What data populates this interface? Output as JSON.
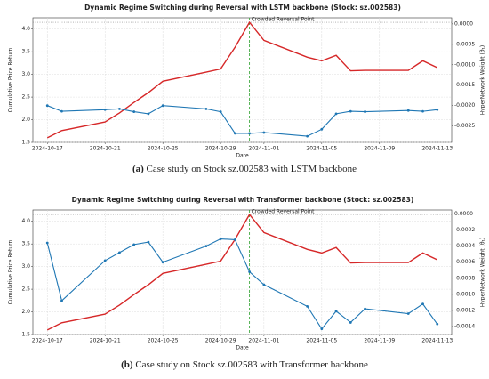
{
  "chart_data": [
    {
      "type": "line",
      "title": "Dynamic Regime Switching during Reversal with LSTM backbone (Stock: sz.002583)",
      "xlabel": "Date",
      "ylabel": "Cumulative Price Return",
      "y2label": "HyperNetwork Weight (θ₁)",
      "x": [
        "2024-10-17",
        "2024-10-18",
        "2024-10-21",
        "2024-10-22",
        "2024-10-23",
        "2024-10-24",
        "2024-10-25",
        "2024-10-28",
        "2024-10-29",
        "2024-10-30",
        "2024-10-31",
        "2024-11-01",
        "2024-11-04",
        "2024-11-05",
        "2024-11-06",
        "2024-11-07",
        "2024-11-08",
        "2024-11-11",
        "2024-11-12",
        "2024-11-13"
      ],
      "series": [
        {
          "name": "Cumulative Price Return",
          "color": "#d62728",
          "axis": "y",
          "markers": false,
          "values": [
            1.6,
            1.76,
            1.95,
            2.15,
            2.38,
            2.6,
            2.85,
            3.05,
            3.12,
            3.6,
            4.15,
            3.75,
            3.38,
            3.3,
            3.42,
            3.08,
            3.09,
            3.09,
            3.3,
            3.15
          ]
        },
        {
          "name": "HyperNetwork Weight",
          "color": "#1f77b4",
          "axis": "y2",
          "markers": true,
          "values": [
            -0.002,
            -0.00214,
            -0.0021,
            -0.00208,
            -0.00215,
            -0.0022,
            -0.002,
            -0.00208,
            -0.00215,
            -0.00268,
            -0.00268,
            -0.00266,
            -0.00275,
            -0.00258,
            -0.0022,
            -0.00214,
            -0.00215,
            -0.00212,
            -0.00214,
            -0.0021
          ]
        }
      ],
      "xlim": [
        "2024-10-16",
        "2024-11-14"
      ],
      "xticks": [
        "2024-10-17",
        "2024-10-21",
        "2024-10-25",
        "2024-10-29",
        "2024-11-01",
        "2024-11-05",
        "2024-11-09",
        "2024-11-13"
      ],
      "ylim": [
        1.5,
        4.25
      ],
      "yticks": [
        {
          "value": 1.5,
          "label": "1.5"
        },
        {
          "value": 2,
          "label": "2.0"
        },
        {
          "value": 2.5,
          "label": "2.5"
        },
        {
          "value": 3,
          "label": "3.0"
        },
        {
          "value": 3.5,
          "label": "3.5"
        },
        {
          "value": 4,
          "label": "4.0"
        }
      ],
      "y2lim": [
        -0.0029,
        0.00015
      ],
      "y2ticks": [
        {
          "value": -0.0025,
          "label": "-0.0025"
        },
        {
          "value": -0.002,
          "label": "-0.0020"
        },
        {
          "value": -0.0015,
          "label": "-0.0015"
        },
        {
          "value": -0.001,
          "label": "-0.0010"
        },
        {
          "value": -0.0005,
          "label": "-0.0005"
        },
        {
          "value": 0,
          "label": "0.0000"
        }
      ],
      "reference_line": 4.15,
      "annotation": {
        "x": "2024-10-31",
        "text": "Crowded Reversal Point"
      },
      "grid": true,
      "caption": {
        "tag": "(a)",
        "text": "Case study on Stock sz.002583 with LSTM backbone"
      }
    },
    {
      "type": "line",
      "title": "Dynamic Regime Switching during Reversal with Transformer backbone (Stock: sz.002583)",
      "xlabel": "Date",
      "ylabel": "Cumulative Price Return",
      "y2label": "HyperNetwork Weight (θ₁)",
      "x": [
        "2024-10-17",
        "2024-10-18",
        "2024-10-21",
        "2024-10-22",
        "2024-10-23",
        "2024-10-24",
        "2024-10-25",
        "2024-10-28",
        "2024-10-29",
        "2024-10-30",
        "2024-10-31",
        "2024-11-01",
        "2024-11-04",
        "2024-11-05",
        "2024-11-06",
        "2024-11-07",
        "2024-11-08",
        "2024-11-11",
        "2024-11-12",
        "2024-11-13"
      ],
      "series": [
        {
          "name": "Cumulative Price Return",
          "color": "#d62728",
          "axis": "y",
          "markers": false,
          "values": [
            1.6,
            1.76,
            1.95,
            2.15,
            2.38,
            2.6,
            2.85,
            3.05,
            3.12,
            3.6,
            4.15,
            3.75,
            3.38,
            3.3,
            3.42,
            3.08,
            3.09,
            3.09,
            3.3,
            3.15
          ]
        },
        {
          "name": "HyperNetwork Weight",
          "color": "#1f77b4",
          "axis": "y2",
          "markers": true,
          "values": [
            -0.00036,
            -0.00108,
            -0.00058,
            -0.00048,
            -0.00038,
            -0.00035,
            -0.0006,
            -0.0004,
            -0.00031,
            -0.00032,
            -0.00072,
            -0.00088,
            -0.00115,
            -0.00143,
            -0.00121,
            -0.00135,
            -0.00118,
            -0.00124,
            -0.00112,
            -0.00137
          ]
        }
      ],
      "xlim": [
        "2024-10-16",
        "2024-11-14"
      ],
      "xticks": [
        "2024-10-17",
        "2024-10-21",
        "2024-10-25",
        "2024-10-29",
        "2024-11-01",
        "2024-11-05",
        "2024-11-09",
        "2024-11-13"
      ],
      "ylim": [
        1.5,
        4.25
      ],
      "yticks": [
        {
          "value": 1.5,
          "label": "1.5"
        },
        {
          "value": 2,
          "label": "2.0"
        },
        {
          "value": 2.5,
          "label": "2.5"
        },
        {
          "value": 3,
          "label": "3.0"
        },
        {
          "value": 3.5,
          "label": "3.5"
        },
        {
          "value": 4,
          "label": "4.0"
        }
      ],
      "y2lim": [
        -0.0015,
        5e-05
      ],
      "y2ticks": [
        {
          "value": -0.0014,
          "label": "-0.0014"
        },
        {
          "value": -0.0012,
          "label": "-0.0012"
        },
        {
          "value": -0.001,
          "label": "-0.0010"
        },
        {
          "value": -0.0008,
          "label": "-0.0008"
        },
        {
          "value": -0.0006,
          "label": "-0.0006"
        },
        {
          "value": -0.0004,
          "label": "-0.0004"
        },
        {
          "value": -0.0002,
          "label": "-0.0002"
        },
        {
          "value": 0,
          "label": "0.0000"
        }
      ],
      "reference_line": 4.15,
      "annotation": {
        "x": "2024-10-31",
        "text": "Crowded Reversal Point"
      },
      "grid": true,
      "caption": {
        "tag": "(b)",
        "text": "Case study on Stock sz.002583 with Transformer backbone"
      }
    }
  ]
}
